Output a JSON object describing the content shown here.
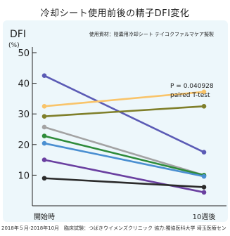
{
  "title": "冷却シート使用前後の精子DFI変化",
  "footnote": "2018年５月-2018年10月　臨床試験：つばきウイメンズクリニック 協力:獨協医科大学 埼玉医療セン",
  "chart_data": {
    "type": "line",
    "ylabel": "DFI",
    "unit": "(%)",
    "subtitle": "使用資材：陰嚢用冷却シート テイコクファルマケア擬製",
    "categories": [
      "開始時",
      "10週後"
    ],
    "ylim": [
      0,
      50
    ],
    "yticks": [
      10,
      20,
      30,
      40,
      50
    ],
    "grid": false,
    "annotation": [
      "P = 0.040928",
      "paired T-test"
    ],
    "series": [
      {
        "color": "#5b5bb5",
        "values": [
          42.5,
          17.5
        ]
      },
      {
        "color": "#f9c46a",
        "values": [
          32.5,
          37.2
        ]
      },
      {
        "color": "#7f7f2a",
        "values": [
          29.2,
          32.5
        ]
      },
      {
        "color": "#a3a3a3",
        "values": [
          25.7,
          10.0
        ]
      },
      {
        "color": "#2e8b3a",
        "values": [
          22.8,
          10.0
        ]
      },
      {
        "color": "#4a8fd1",
        "values": [
          20.4,
          9.6
        ]
      },
      {
        "color": "#6a3fa0",
        "values": [
          15.0,
          4.4
        ]
      },
      {
        "color": "#2b2b2b",
        "values": [
          9.0,
          6.1
        ]
      }
    ]
  }
}
